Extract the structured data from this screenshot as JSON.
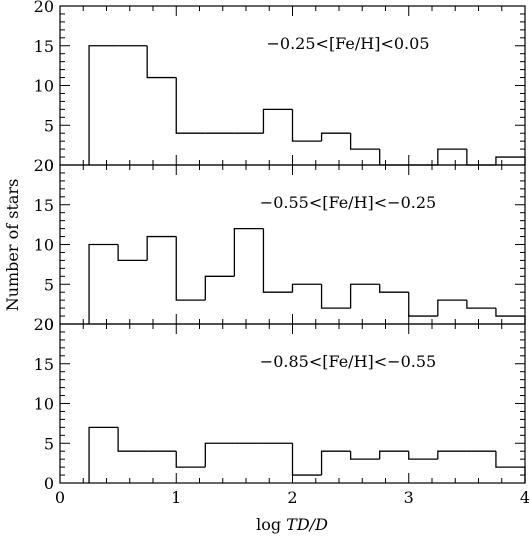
{
  "chart_data": {
    "type": "bar",
    "xlabel": "log TD/D",
    "ylabel": "Number of stars",
    "xlim": [
      0,
      4
    ],
    "ylim": [
      0,
      20
    ],
    "x_ticks": [
      "0",
      "1",
      "2",
      "3",
      "4"
    ],
    "y_ticks": [
      "0",
      "5",
      "10",
      "15",
      "20"
    ],
    "bin_edges": [
      0.25,
      0.5,
      0.75,
      1.0,
      1.25,
      1.5,
      1.75,
      2.0,
      2.25,
      2.5,
      2.75,
      3.0,
      3.25,
      3.5,
      3.75,
      4.0
    ],
    "panels": [
      {
        "annotation": "−0.25<[Fe/H]<0.05",
        "values": [
          15,
          15,
          11,
          4,
          4,
          4,
          7,
          3,
          4,
          2,
          0,
          0,
          2,
          0,
          1
        ]
      },
      {
        "annotation": "−0.55<[Fe/H]<−0.25",
        "values": [
          10,
          8,
          11,
          3,
          6,
          12,
          4,
          5,
          2,
          5,
          4,
          1,
          3,
          2,
          1
        ]
      },
      {
        "annotation": "−0.85<[Fe/H]<−0.55",
        "values": [
          7,
          4,
          4,
          2,
          5,
          5,
          5,
          1,
          4,
          3,
          4,
          3,
          4,
          4,
          2
        ]
      }
    ]
  }
}
